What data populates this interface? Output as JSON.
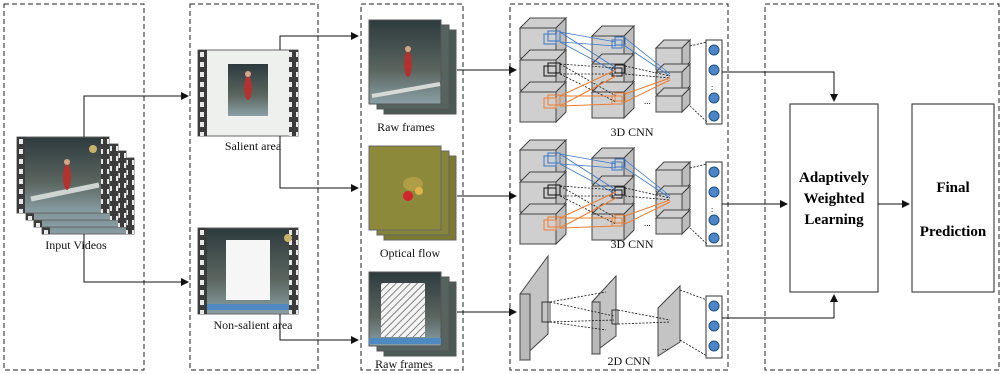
{
  "stages": {
    "input": {
      "label": "Input Videos"
    },
    "salient": {
      "label": "Salient area"
    },
    "non_salient": {
      "label": "Non-salient area"
    },
    "streams": [
      {
        "input_label": "Raw frames",
        "network_label": "3D CNN"
      },
      {
        "input_label": "Optical flow",
        "network_label": "3D CNN"
      },
      {
        "input_label": "Raw frames",
        "network_label": "2D CNN"
      }
    ],
    "fusion": {
      "lines": [
        "Adaptively",
        "Weighted",
        "Learning"
      ]
    },
    "output": {
      "lines": [
        "Final",
        "Prediction"
      ]
    }
  },
  "colors": {
    "accent_blue": "#3a78c9",
    "accent_orange": "#ef7d32",
    "neuron_blue": "#4a86c8",
    "optical_flow_bg": "#8c8a3a",
    "cnn_gray": "#cfcfcf"
  }
}
